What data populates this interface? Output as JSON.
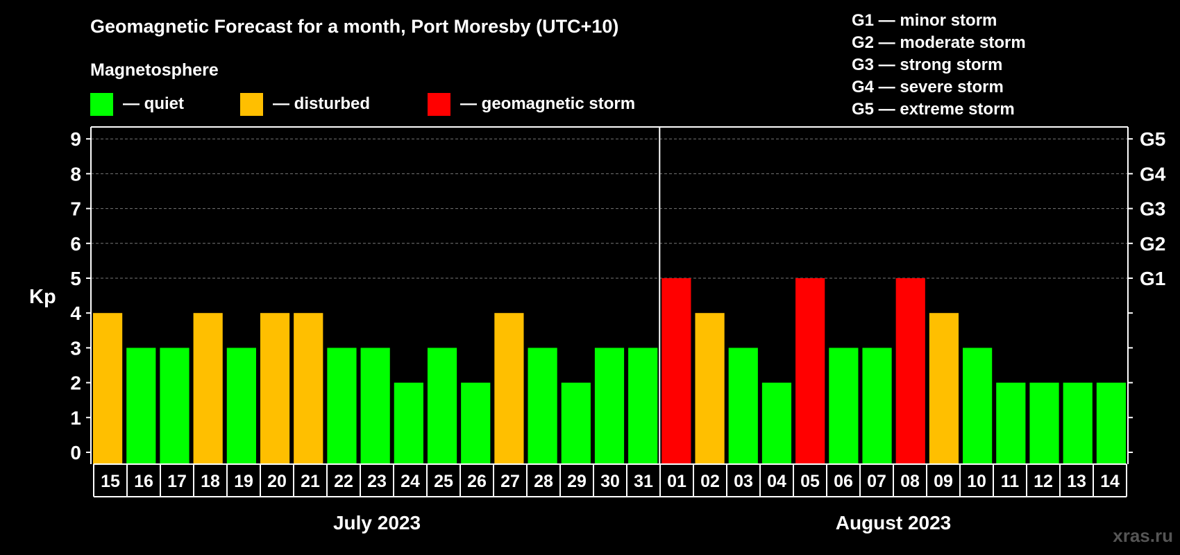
{
  "chart_data": {
    "type": "bar",
    "title": "Geomagnetic Forecast for a month, Port Moresby (UTC+10)",
    "ylabel": "Kp",
    "ylim": [
      0,
      9
    ],
    "yticks": [
      "0",
      "1",
      "2",
      "3",
      "4",
      "5",
      "6",
      "7",
      "8",
      "9"
    ],
    "grid": true,
    "legend": {
      "heading": "Magnetosphere",
      "items": [
        {
          "label": "— quiet",
          "color": "#00ff00"
        },
        {
          "label": "— disturbed",
          "color": "#ffbf00"
        },
        {
          "label": "— geomagnetic storm",
          "color": "#ff0000"
        }
      ]
    },
    "storm_scale": [
      "G1 — minor storm",
      "G2 — moderate storm",
      "G3 — strong storm",
      "G4 — severe storm",
      "G5 — extreme storm"
    ],
    "right_axis_labels": [
      {
        "kp": 5,
        "label": "G1"
      },
      {
        "kp": 6,
        "label": "G2"
      },
      {
        "kp": 7,
        "label": "G3"
      },
      {
        "kp": 8,
        "label": "G4"
      },
      {
        "kp": 9,
        "label": "G5"
      }
    ],
    "categories": [
      "15",
      "16",
      "17",
      "18",
      "19",
      "20",
      "21",
      "22",
      "23",
      "24",
      "25",
      "26",
      "27",
      "28",
      "29",
      "30",
      "31",
      "01",
      "02",
      "03",
      "04",
      "05",
      "06",
      "07",
      "08",
      "09",
      "10",
      "11",
      "12",
      "13",
      "14"
    ],
    "values": [
      4,
      3,
      3,
      4,
      3,
      4,
      4,
      3,
      3,
      2,
      3,
      2,
      4,
      3,
      2,
      3,
      3,
      5,
      4,
      3,
      2,
      5,
      3,
      3,
      5,
      4,
      3,
      2,
      2,
      2,
      2
    ],
    "months": [
      {
        "label": "July 2023",
        "start": 0,
        "count": 17
      },
      {
        "label": "August 2023",
        "start": 17,
        "count": 14
      }
    ],
    "month_divider_after_index": 16,
    "colors": {
      "quiet": "#00ff00",
      "disturbed": "#ffbf00",
      "storm": "#ff0000",
      "grid": "#777777",
      "axis": "#ffffff"
    }
  },
  "watermark": "xras.ru"
}
